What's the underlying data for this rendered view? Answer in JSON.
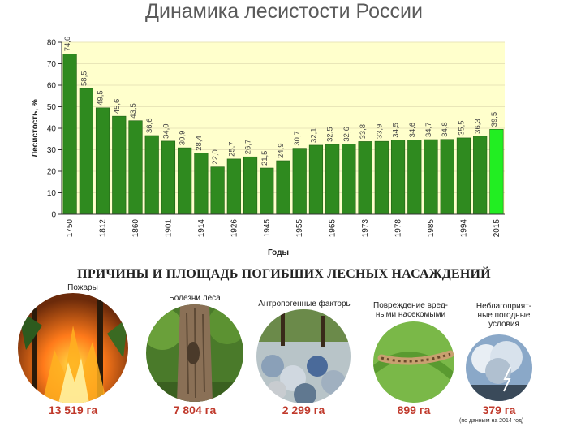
{
  "chart_data": {
    "type": "bar",
    "title": "Динамика лесистости России",
    "xlabel": "Годы",
    "ylabel": "Лесистость, %",
    "ylim": [
      0,
      80
    ],
    "yticks": [
      0,
      10,
      20,
      30,
      40,
      50,
      60,
      70,
      80
    ],
    "grid": false,
    "legend": "none",
    "categories": [
      "1750",
      "",
      "1812",
      "",
      "1860",
      "",
      "1901",
      "",
      "1914",
      "",
      "1926",
      "",
      "1945",
      "",
      "1955",
      "",
      "1965",
      "",
      "1973",
      "",
      "1978",
      "",
      "1985",
      "",
      "1994",
      "",
      "2015"
    ],
    "values": [
      74.6,
      58.5,
      49.5,
      45.6,
      43.5,
      36.6,
      34.0,
      30.9,
      28.4,
      22.0,
      25.7,
      26.7,
      21.5,
      24.9,
      30.7,
      32.1,
      32.5,
      32.6,
      33.8,
      33.9,
      34.5,
      34.6,
      34.7,
      34.8,
      35.5,
      36.3,
      39.5
    ],
    "data_labels": [
      "74,6",
      "58,5",
      "49,5",
      "45,6",
      "43,5",
      "36,6",
      "34,0",
      "30,9",
      "28,4",
      "22,0",
      "25,7",
      "26,7",
      "21,5",
      "24,9",
      "30,7",
      "32,1",
      "32,5",
      "32,6",
      "33,8",
      "33,9",
      "34,5",
      "34,6",
      "34,7",
      "34,8",
      "35,5",
      "36,3",
      "39,5"
    ],
    "highlight_index": 26,
    "colors": {
      "bar": "#2f8a1f",
      "bar_highlight": "#22ee22",
      "plot_bg": "#ffffcc",
      "label": "#444444"
    }
  },
  "section": {
    "title": "ПРИЧИНЫ И ПЛОЩАДЬ ПОГИБШИХ ЛЕСНЫХ НАСАЖДЕНИЙ"
  },
  "causes": [
    {
      "label": "Пожары",
      "area": "13 519 га",
      "icon": "fire-icon"
    },
    {
      "label": "Болезни леса",
      "area": "7 804 га",
      "icon": "tree-trunk-icon"
    },
    {
      "label": "Антропогенные факторы",
      "area": "2 299 га",
      "icon": "garbage-icon"
    },
    {
      "label": "Повреждение вред-ными насекомыми",
      "area": "899 га",
      "icon": "caterpillar-icon"
    },
    {
      "label": "Неблагоприят-ные погодные условия",
      "area": "379 га",
      "icon": "storm-cloud-icon"
    }
  ],
  "footnote": "(по данным на 2014 год)"
}
